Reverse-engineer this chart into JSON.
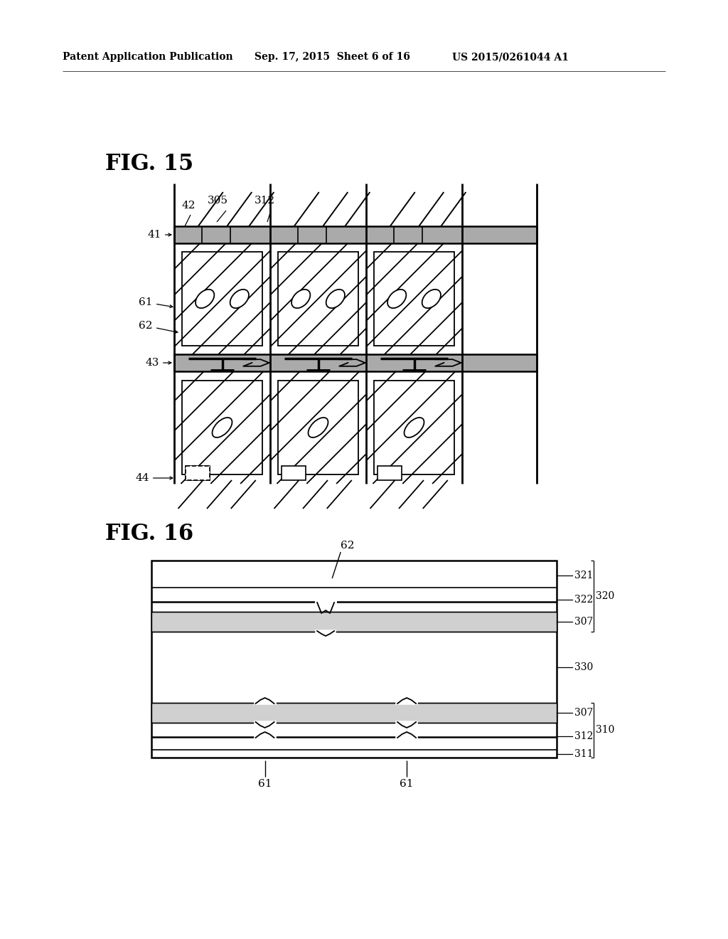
{
  "bg_color": "#ffffff",
  "header_left": "Patent Application Publication",
  "header_mid": "Sep. 17, 2015  Sheet 6 of 16",
  "header_right": "US 2015/0261044 A1",
  "fig15_label": "FIG. 15",
  "fig16_label": "FIG. 16",
  "gray_band_color": "#aaaaaa",
  "hatch_color": "#cccccc"
}
